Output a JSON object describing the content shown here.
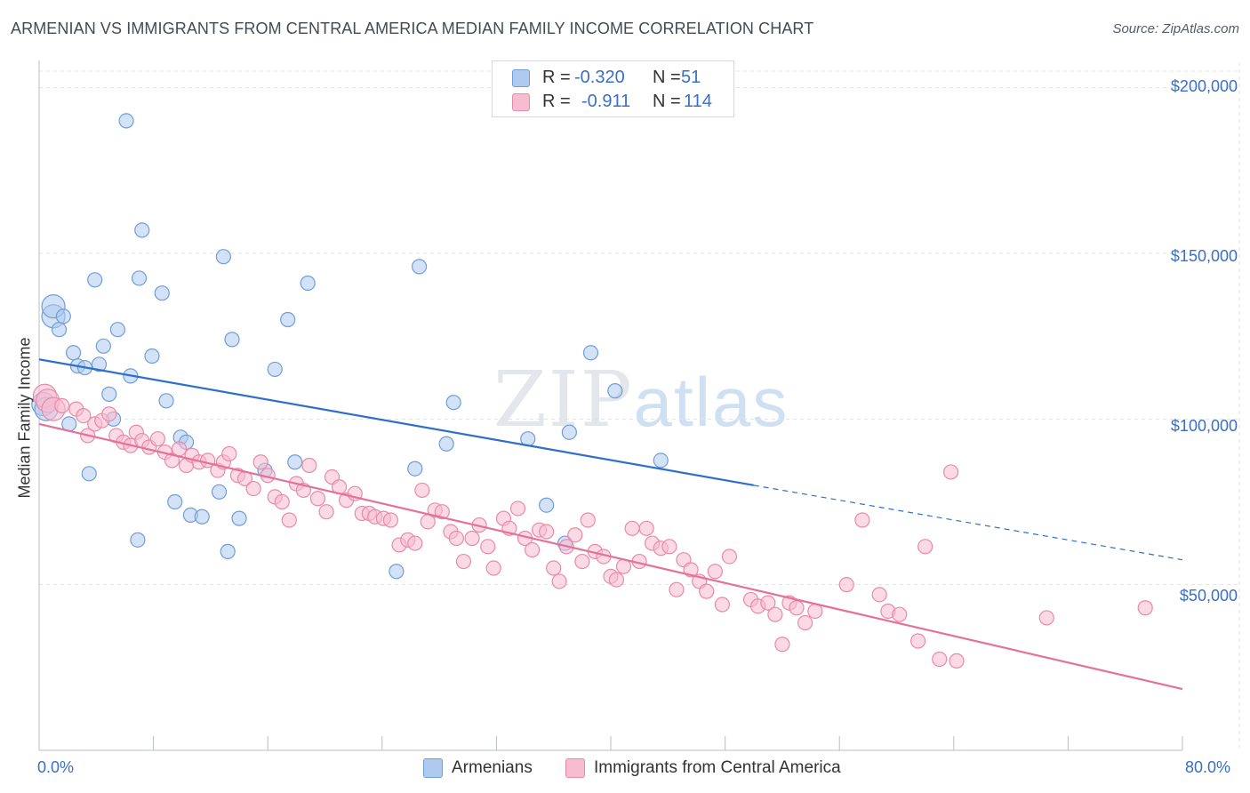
{
  "header": {
    "title": "ARMENIAN VS IMMIGRANTS FROM CENTRAL AMERICA MEDIAN FAMILY INCOME CORRELATION CHART",
    "source": "Source: ZipAtlas.com"
  },
  "watermark": {
    "zip": "ZIP",
    "atlas": "atlas"
  },
  "legend_top": [
    {
      "r_label": "R =",
      "r_value": "-0.320",
      "n_label": "N =",
      "n_value": "51",
      "color": "#aecbef"
    },
    {
      "r_label": "R =",
      "r_value": "-0.911",
      "n_label": "N =",
      "n_value": "114",
      "color": "#f7bccf"
    }
  ],
  "colors": {
    "armenians_fill": "#aecbef",
    "armenians_stroke": "#6f9ed8",
    "armenians_line": "#2f6fcc",
    "central_fill": "#f7bccf",
    "central_stroke": "#e98aa8",
    "central_line": "#e5719a",
    "grid": "#dde2e8",
    "tick_text": "#3a6fc4"
  },
  "chart_data": {
    "type": "scatter",
    "title": "ARMENIAN VS IMMIGRANTS FROM CENTRAL AMERICA MEDIAN FAMILY INCOME CORRELATION CHART",
    "xlabel": "",
    "ylabel": "Median Family Income",
    "xlim": [
      0,
      80
    ],
    "ylim": [
      0,
      205000
    ],
    "x_tick_labels": [
      "0.0%",
      "80.0%"
    ],
    "y_ticks": [
      50000,
      100000,
      150000,
      200000
    ],
    "y_tick_labels": [
      "$50,000",
      "$100,000",
      "$150,000",
      "$200,000"
    ],
    "grid": true,
    "legend_position": "bottom",
    "series": [
      {
        "name": "Armenians",
        "regression": {
          "x0": 0,
          "y0": 118000,
          "x1": 50,
          "y1": 80000,
          "dash_to_x": 80,
          "dash_to_y": 57500
        },
        "points": [
          [
            0.3,
            104500
          ],
          [
            0.5,
            103000
          ],
          [
            1.0,
            131000
          ],
          [
            1.0,
            134000
          ],
          [
            1.4,
            127000
          ],
          [
            1.7,
            131000
          ],
          [
            2.1,
            98500
          ],
          [
            2.4,
            120000
          ],
          [
            2.7,
            116000
          ],
          [
            3.2,
            115500
          ],
          [
            3.5,
            83500
          ],
          [
            3.9,
            142000
          ],
          [
            4.2,
            116500
          ],
          [
            4.5,
            122000
          ],
          [
            4.9,
            107500
          ],
          [
            5.2,
            100000
          ],
          [
            5.5,
            127000
          ],
          [
            6.1,
            190000
          ],
          [
            6.4,
            113000
          ],
          [
            6.9,
            63500
          ],
          [
            7.0,
            142500
          ],
          [
            7.2,
            157000
          ],
          [
            7.9,
            119000
          ],
          [
            8.6,
            138000
          ],
          [
            8.9,
            105500
          ],
          [
            9.5,
            75000
          ],
          [
            9.9,
            94500
          ],
          [
            10.3,
            93000
          ],
          [
            10.6,
            71000
          ],
          [
            11.4,
            70500
          ],
          [
            12.6,
            78000
          ],
          [
            12.9,
            149000
          ],
          [
            13.2,
            60000
          ],
          [
            13.5,
            124000
          ],
          [
            14.0,
            70000
          ],
          [
            15.8,
            84500
          ],
          [
            16.5,
            115000
          ],
          [
            17.4,
            130000
          ],
          [
            17.9,
            87000
          ],
          [
            18.8,
            141000
          ],
          [
            25.0,
            54000
          ],
          [
            26.3,
            85000
          ],
          [
            26.6,
            146000
          ],
          [
            28.5,
            92500
          ],
          [
            29.0,
            105000
          ],
          [
            34.2,
            94000
          ],
          [
            35.5,
            74000
          ],
          [
            36.8,
            62500
          ],
          [
            37.1,
            96000
          ],
          [
            38.6,
            120000
          ],
          [
            40.3,
            108500
          ],
          [
            43.5,
            87500
          ]
        ]
      },
      {
        "name": "Immigrants from Central America",
        "regression": {
          "x0": 0,
          "y0": 98500,
          "x1": 80,
          "y1": 18500
        },
        "points": [
          [
            0.4,
            107000
          ],
          [
            0.6,
            105500
          ],
          [
            1.0,
            103000
          ],
          [
            1.6,
            104000
          ],
          [
            2.6,
            103000
          ],
          [
            3.1,
            101000
          ],
          [
            3.4,
            95000
          ],
          [
            3.9,
            98500
          ],
          [
            4.4,
            99500
          ],
          [
            4.9,
            101500
          ],
          [
            5.4,
            95000
          ],
          [
            5.9,
            93000
          ],
          [
            6.4,
            92000
          ],
          [
            6.8,
            96000
          ],
          [
            7.2,
            93500
          ],
          [
            7.7,
            91500
          ],
          [
            8.3,
            94000
          ],
          [
            8.8,
            90000
          ],
          [
            9.3,
            87500
          ],
          [
            9.8,
            91000
          ],
          [
            10.3,
            86000
          ],
          [
            10.7,
            89000
          ],
          [
            11.2,
            87000
          ],
          [
            11.8,
            87500
          ],
          [
            12.5,
            84500
          ],
          [
            12.9,
            87000
          ],
          [
            13.3,
            89500
          ],
          [
            13.9,
            83000
          ],
          [
            14.4,
            82000
          ],
          [
            15.0,
            79000
          ],
          [
            15.5,
            87000
          ],
          [
            16.0,
            83000
          ],
          [
            16.5,
            76500
          ],
          [
            17.0,
            75000
          ],
          [
            17.5,
            69500
          ],
          [
            18.0,
            80500
          ],
          [
            18.5,
            78500
          ],
          [
            18.9,
            86000
          ],
          [
            19.5,
            76000
          ],
          [
            20.1,
            72000
          ],
          [
            20.5,
            82500
          ],
          [
            21.0,
            79500
          ],
          [
            21.5,
            75500
          ],
          [
            22.1,
            77500
          ],
          [
            22.6,
            71500
          ],
          [
            23.1,
            71500
          ],
          [
            23.5,
            70500
          ],
          [
            24.1,
            70000
          ],
          [
            24.6,
            69500
          ],
          [
            25.2,
            62000
          ],
          [
            25.8,
            63500
          ],
          [
            26.3,
            62500
          ],
          [
            26.8,
            78500
          ],
          [
            27.2,
            69000
          ],
          [
            27.7,
            72500
          ],
          [
            28.2,
            72000
          ],
          [
            28.8,
            66000
          ],
          [
            29.2,
            64000
          ],
          [
            29.7,
            57000
          ],
          [
            30.3,
            64000
          ],
          [
            30.8,
            68000
          ],
          [
            31.4,
            61500
          ],
          [
            31.8,
            55000
          ],
          [
            32.5,
            70000
          ],
          [
            32.9,
            67000
          ],
          [
            33.5,
            73000
          ],
          [
            34.0,
            64000
          ],
          [
            34.5,
            60500
          ],
          [
            35.0,
            66500
          ],
          [
            35.5,
            66000
          ],
          [
            36.0,
            55000
          ],
          [
            36.4,
            51000
          ],
          [
            36.9,
            61500
          ],
          [
            37.5,
            65000
          ],
          [
            38.0,
            57000
          ],
          [
            38.4,
            69500
          ],
          [
            38.9,
            60000
          ],
          [
            39.5,
            58500
          ],
          [
            40.0,
            52500
          ],
          [
            40.4,
            51500
          ],
          [
            40.9,
            55500
          ],
          [
            41.5,
            67000
          ],
          [
            42.0,
            57000
          ],
          [
            42.5,
            67000
          ],
          [
            42.9,
            62500
          ],
          [
            43.5,
            61000
          ],
          [
            44.1,
            61500
          ],
          [
            44.6,
            48500
          ],
          [
            45.1,
            57500
          ],
          [
            45.6,
            54500
          ],
          [
            46.2,
            51000
          ],
          [
            46.7,
            48000
          ],
          [
            47.3,
            54000
          ],
          [
            47.8,
            44000
          ],
          [
            48.3,
            58500
          ],
          [
            49.8,
            45500
          ],
          [
            50.3,
            43500
          ],
          [
            51.0,
            44500
          ],
          [
            51.5,
            41000
          ],
          [
            52.0,
            32000
          ],
          [
            52.5,
            44500
          ],
          [
            53.0,
            43000
          ],
          [
            53.6,
            38500
          ],
          [
            54.3,
            42000
          ],
          [
            56.5,
            50000
          ],
          [
            57.6,
            69500
          ],
          [
            58.8,
            47000
          ],
          [
            59.4,
            42000
          ],
          [
            60.2,
            41000
          ],
          [
            61.5,
            33000
          ],
          [
            62.0,
            61500
          ],
          [
            63.0,
            27500
          ],
          [
            63.8,
            84000
          ],
          [
            64.2,
            27000
          ],
          [
            70.5,
            40000
          ],
          [
            77.4,
            43000
          ]
        ]
      }
    ]
  },
  "y_axis_label": "Median Family Income",
  "bottom_legend": [
    {
      "label": "Armenians"
    },
    {
      "label": "Immigrants from Central America"
    }
  ]
}
